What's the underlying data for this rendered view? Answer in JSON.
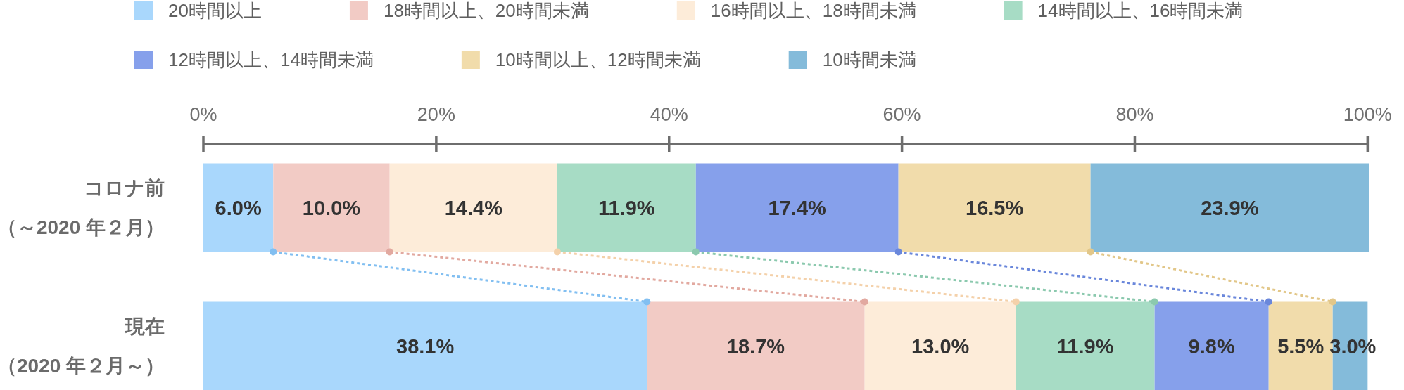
{
  "chart_data": {
    "type": "bar",
    "orientation": "horizontal",
    "stacked": true,
    "categories": [
      "コロナ前（～2020 年２月）",
      "現在（2020 年２月～）"
    ],
    "xlim": [
      0,
      100.1
    ],
    "xticks": [
      {
        "value": 0,
        "label": "0%"
      },
      {
        "value": 20,
        "label": "20%"
      },
      {
        "value": 40,
        "label": "40%"
      },
      {
        "value": 60,
        "label": "60%"
      },
      {
        "value": 80,
        "label": "80%"
      },
      {
        "value": 100,
        "label": "100%"
      }
    ],
    "legend": "top",
    "series": [
      {
        "name": "20時間以上",
        "color": "#a9d7fc",
        "values": [
          6.0,
          38.1
        ],
        "value_labels": [
          "6.0%",
          "38.1%"
        ]
      },
      {
        "name": "18時間以上、20時間未満",
        "color": "#f2cbc5",
        "values": [
          10.0,
          18.7
        ],
        "value_labels": [
          "10.0%",
          "18.7%"
        ]
      },
      {
        "name": "16時間以上、18時間未満",
        "color": "#fdecd9",
        "values": [
          14.4,
          13.0
        ],
        "value_labels": [
          "14.4%",
          "13.0%"
        ]
      },
      {
        "name": "14時間以上、16時間未満",
        "color": "#a7dcc5",
        "values": [
          11.9,
          11.9
        ],
        "value_labels": [
          "11.9%",
          "11.9%"
        ]
      },
      {
        "name": "12時間以上、14時間未満",
        "color": "#86a0eb",
        "values": [
          17.4,
          9.8
        ],
        "value_labels": [
          "17.4%",
          "9.8%"
        ]
      },
      {
        "name": "10時間以上、12時間未満",
        "color": "#f1dcab",
        "values": [
          16.5,
          5.5
        ],
        "value_labels": [
          "16.5%",
          "5.5%"
        ]
      },
      {
        "name": "10時間未満",
        "color": "#84bbda",
        "values": [
          23.9,
          3.0
        ],
        "value_labels": [
          "23.9%",
          "3.0%"
        ]
      }
    ]
  }
}
